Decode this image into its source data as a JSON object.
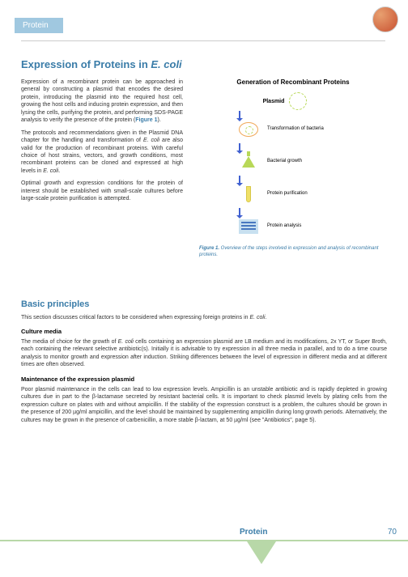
{
  "header": {
    "tab": "Protein"
  },
  "main": {
    "title_a": "Expression of Proteins in ",
    "title_b": "E. coli",
    "p1_a": "Expression of a recombinant protein can be approached in general by constructing a plasmid that encodes the desired protein, introducing the plasmid into the required host cell, growing the host cells and inducing protein expression, and then lysing the cells, purifying the protein, and performing SDS-PAGE analysis to verify the presence of the protein (",
    "p1_link": "Figure 1",
    "p1_b": ").",
    "p2_a": "The protocols and recommendations given in the Plasmid DNA chapter for the handling and transformation of ",
    "p2_it1": "E. coli",
    "p2_b": " are also valid for the production of recombinant proteins. With careful choice of host strains, vectors, and growth conditions, most recombinant proteins can be cloned and expressed at high levels in ",
    "p2_it2": "E. coli",
    "p2_c": ".",
    "p3": "Optimal growth and expression conditions for the protein of interest should be established with small-scale cultures before large-scale protein purification is attempted."
  },
  "diagram": {
    "title": "Generation of Recombinant Proteins",
    "step1_label": "Plasmid",
    "step2": "Transformation of bacteria",
    "step3": "Bacterial growth",
    "step4": "Protein purification",
    "step5": "Protein analysis",
    "caption_b": "Figure 1.",
    "caption_t": " Overview of the steps involved in expression and analysis of recombinant proteins."
  },
  "section2": {
    "title": "Basic principles",
    "intro_a": "This section discusses critical factors to be considered when expressing foreign proteins in ",
    "intro_it": "E. coli",
    "intro_b": ".",
    "h1": "Culture media",
    "t1_a": "The media of choice for the growth of ",
    "t1_it": "E. coli",
    "t1_b": " cells containing an expression plasmid are LB medium and its modifications, 2x YT, or Super Broth, each containing the relevant selective antibiotic(s). Initially it is advisable to try expression in all three media in parallel, and to do a time course analysis to monitor growth and expression after induction. Striking differences between the level of expression in different media and at different times are often observed.",
    "h2": "Maintenance of the expression plasmid",
    "t2": "Poor plasmid maintenance in the cells can lead to low expression levels. Ampicillin is an unstable antibiotic and is rapidly depleted in growing cultures due in part to the β-lactamase secreted by resistant bacterial cells. It is important to check plasmid levels by plating cells from the expression culture on plates with and without ampicillin. If the stability of the expression construct is a problem, the cultures should be grown in the presence of 200 µg/ml ampicillin, and the level should be maintained by supplementing ampicillin during long growth periods. Alternatively, the cultures may be grown in the presence of carbenicillin, a more stable β-lactam, at 50 µg/ml (see \"Antibiotics\", page 5)."
  },
  "footer": {
    "label": "Protein",
    "page": "70"
  }
}
